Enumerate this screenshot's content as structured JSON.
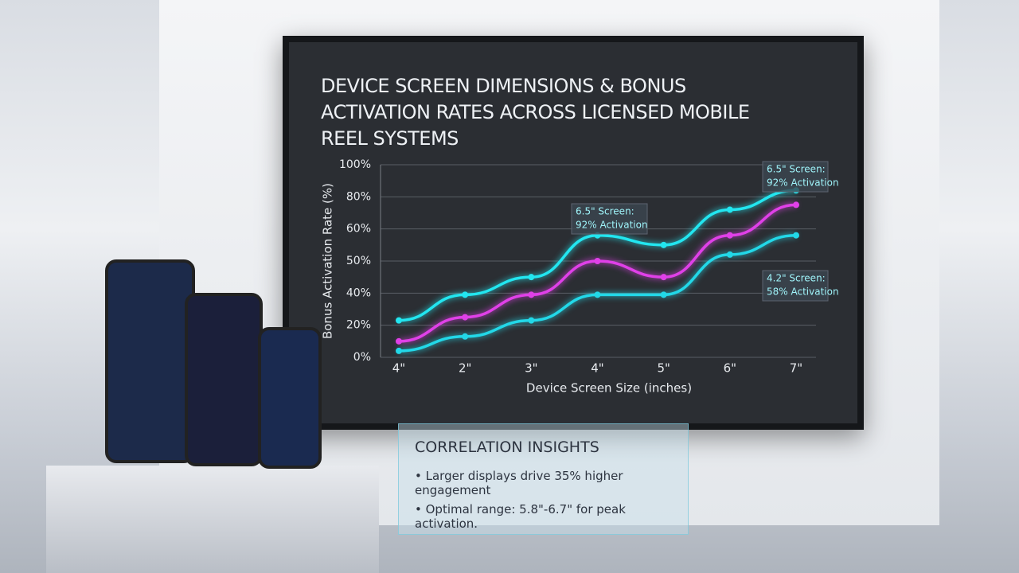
{
  "chart_data": {
    "type": "line",
    "title": "DEVICE SCREEN DIMENSIONS & BONUS ACTIVATION RATES ACROSS LICENSED MOBILE REEL SYSTEMS",
    "x_label": "Device Screen Size (inches)",
    "y_label": "Bonus Activation Rate (%)",
    "categories": [
      "4\"",
      "2\"",
      "3\"",
      "4\"",
      "5\"",
      "6\"",
      "7\""
    ],
    "series": [
      {
        "color": "#22e6f0",
        "values": [
          23,
          39,
          45,
          58,
          55,
          72,
          84
        ]
      },
      {
        "color": "#e040e8",
        "values": [
          10,
          25,
          39,
          50,
          45,
          58,
          75
        ]
      },
      {
        "color": "#22d8e8",
        "values": [
          4,
          13,
          23,
          39,
          39,
          52,
          58
        ]
      }
    ],
    "ylim": [
      0,
      100
    ],
    "yticks": [
      {
        "value": 0,
        "label": "0%"
      },
      {
        "value": 20,
        "label": "20%"
      },
      {
        "value": 40,
        "label": "40%"
      },
      {
        "value": 50,
        "label": "50%"
      },
      {
        "value": 60,
        "label": "60%"
      },
      {
        "value": 80,
        "label": "80%"
      },
      {
        "value": 100,
        "label": "100%"
      }
    ],
    "grid": true,
    "annotations": [
      {
        "lines": [
          "6.5\" Screen:",
          "92% Activation"
        ]
      },
      {
        "lines": [
          "6.5\" Screen:",
          "92% Activation"
        ]
      },
      {
        "lines": [
          "4.2\" Screen:",
          "58% Activation"
        ]
      }
    ]
  },
  "panel": {
    "title": "CORRELATION INSIGHTS",
    "bullets": [
      "• Larger displays drive 35% higher engagement",
      "• Optimal range: 5.8\"-6.7\" for peak activation."
    ]
  }
}
